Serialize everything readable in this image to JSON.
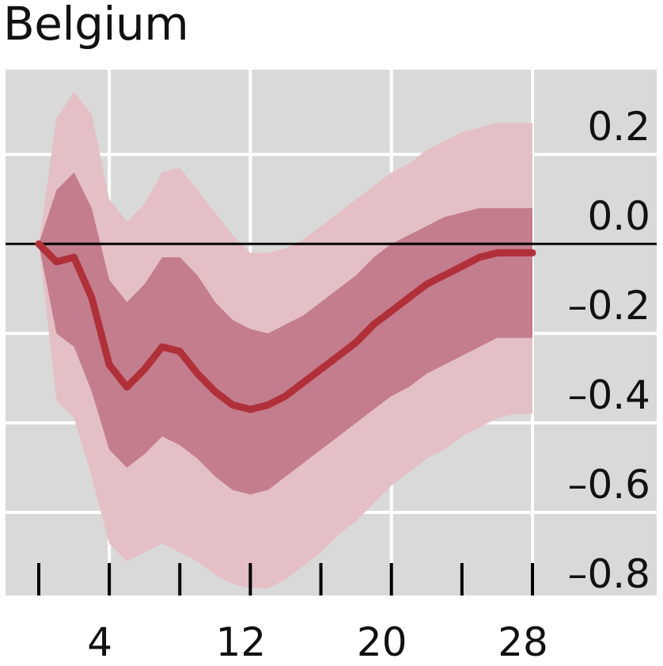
{
  "chart_data": {
    "type": "area",
    "title": "Belgium",
    "xlabel": "",
    "ylabel": "",
    "xlim": [
      0,
      35
    ],
    "ylim": [
      -0.82,
      0.38
    ],
    "x_ticks": [
      4,
      12,
      20,
      28
    ],
    "x_minor_ticks": [
      0,
      4,
      8,
      12,
      16,
      20,
      24,
      28
    ],
    "y_ticks": [
      0.2,
      0.0,
      -0.2,
      -0.4,
      -0.6,
      -0.8
    ],
    "y_tick_labels": [
      "0.2",
      "0.0",
      "–0.2",
      "–0.4",
      "–0.6",
      "–0.8"
    ],
    "grid": true,
    "zero_line": 0,
    "x": [
      0,
      1,
      2,
      3,
      4,
      5,
      6,
      7,
      8,
      9,
      10,
      11,
      12,
      13,
      14,
      15,
      16,
      17,
      18,
      19,
      20,
      21,
      22,
      23,
      24,
      25,
      26,
      27,
      28
    ],
    "series": [
      {
        "role": "median",
        "values": [
          0.0,
          -0.04,
          -0.03,
          -0.12,
          -0.27,
          -0.32,
          -0.28,
          -0.23,
          -0.24,
          -0.29,
          -0.33,
          -0.36,
          -0.37,
          -0.36,
          -0.34,
          -0.31,
          -0.28,
          -0.25,
          -0.22,
          -0.18,
          -0.15,
          -0.12,
          -0.09,
          -0.07,
          -0.05,
          -0.03,
          -0.02,
          -0.02,
          -0.02
        ]
      },
      {
        "role": "inner_band_upper",
        "values": [
          0.0,
          0.12,
          0.16,
          0.08,
          -0.08,
          -0.13,
          -0.09,
          -0.03,
          -0.03,
          -0.07,
          -0.13,
          -0.17,
          -0.19,
          -0.2,
          -0.18,
          -0.16,
          -0.13,
          -0.1,
          -0.07,
          -0.03,
          0.0,
          0.02,
          0.04,
          0.06,
          0.07,
          0.08,
          0.08,
          0.08,
          0.08
        ]
      },
      {
        "role": "inner_band_lower",
        "values": [
          0.0,
          -0.2,
          -0.23,
          -0.33,
          -0.46,
          -0.5,
          -0.47,
          -0.43,
          -0.45,
          -0.48,
          -0.52,
          -0.55,
          -0.56,
          -0.55,
          -0.52,
          -0.49,
          -0.46,
          -0.43,
          -0.4,
          -0.37,
          -0.34,
          -0.32,
          -0.29,
          -0.27,
          -0.25,
          -0.23,
          -0.21,
          -0.21,
          -0.21
        ]
      },
      {
        "role": "outer_band_upper",
        "values": [
          0.0,
          0.28,
          0.34,
          0.29,
          0.1,
          0.05,
          0.09,
          0.16,
          0.17,
          0.12,
          0.07,
          0.02,
          -0.02,
          -0.02,
          -0.01,
          0.01,
          0.04,
          0.07,
          0.1,
          0.13,
          0.16,
          0.18,
          0.21,
          0.23,
          0.25,
          0.26,
          0.27,
          0.27,
          0.27
        ]
      },
      {
        "role": "outer_band_lower",
        "values": [
          0.0,
          -0.35,
          -0.39,
          -0.52,
          -0.67,
          -0.71,
          -0.69,
          -0.67,
          -0.69,
          -0.71,
          -0.74,
          -0.76,
          -0.77,
          -0.77,
          -0.75,
          -0.72,
          -0.69,
          -0.65,
          -0.62,
          -0.58,
          -0.54,
          -0.51,
          -0.48,
          -0.46,
          -0.43,
          -0.41,
          -0.39,
          -0.38,
          -0.38
        ]
      }
    ],
    "colors": {
      "median": "#b0303a",
      "inner_band": "#c47d8d",
      "outer_band": "#e4c0c6",
      "plot_background": "#d9d9d9",
      "gridline": "#ffffff",
      "zero_line": "#000000",
      "axis_ticks": "#000000"
    }
  }
}
